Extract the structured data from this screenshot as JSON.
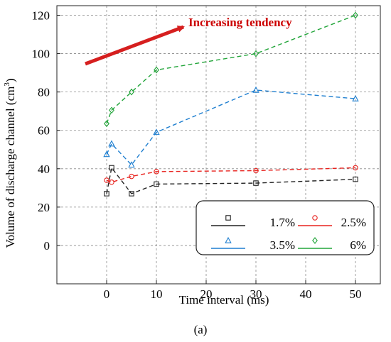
{
  "chart_data": {
    "type": "line",
    "title": "",
    "xlabel": "Time interval  (ms)",
    "ylabel": "Volume of discharge channel (cm",
    "ylabel_sup": "3",
    "ylabel_close": ")",
    "caption": "(a)",
    "xlim": [
      -10,
      55
    ],
    "ylim": [
      -20,
      125
    ],
    "x_ticks": [
      0,
      10,
      20,
      30,
      40,
      50
    ],
    "y_ticks": [
      0,
      20,
      40,
      60,
      80,
      100,
      120
    ],
    "grid": true,
    "legend_position": "lower-right",
    "annotation": {
      "text": "Increasing tendency",
      "color": "#cc0000"
    },
    "series": [
      {
        "name": "1.7%",
        "color": "#222222",
        "marker": "square",
        "x": [
          0,
          1,
          5,
          10,
          30,
          50
        ],
        "y": [
          27,
          40.5,
          27,
          32,
          32.5,
          34.5
        ]
      },
      {
        "name": "2.5%",
        "color": "#e8231f",
        "marker": "circle",
        "x": [
          0,
          1,
          5,
          10,
          30,
          50
        ],
        "y": [
          34,
          33,
          36,
          38.5,
          39,
          40.5
        ]
      },
      {
        "name": "3.5%",
        "color": "#1f7fd0",
        "marker": "triangle",
        "x": [
          0,
          1,
          5,
          10,
          30,
          50
        ],
        "y": [
          47.5,
          53,
          42,
          59,
          81,
          76.5
        ]
      },
      {
        "name": "6%",
        "color": "#22a53a",
        "marker": "diamond",
        "x": [
          0,
          1,
          5,
          10,
          30,
          50
        ],
        "y": [
          63.5,
          70.5,
          80,
          91.5,
          100,
          120
        ]
      }
    ]
  }
}
